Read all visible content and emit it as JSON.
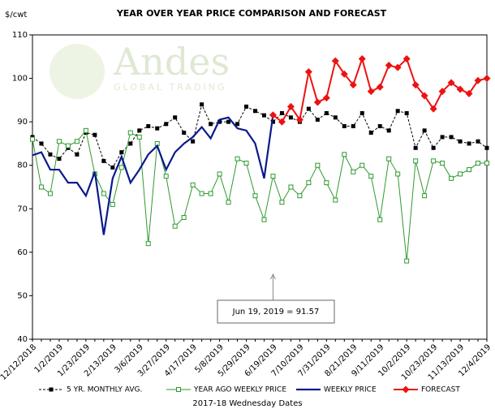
{
  "chart_data": {
    "type": "line",
    "title": "YEAR OVER YEAR PRICE COMPARISON AND FORECAST",
    "y_label": "$/cwt",
    "x_label": "2017-18 Wednesday Dates",
    "watermark": "Andes",
    "watermark_sub": "GLOBAL TRADING",
    "annotation": "Jun 19, 2019  = 91.57",
    "annotation_index": 27,
    "categories": [
      "12/12/2018",
      null,
      null,
      "1/2/2019",
      null,
      null,
      "1/23/2019",
      null,
      null,
      "2/13/2019",
      null,
      null,
      "3/6/2019",
      null,
      null,
      "3/27/2019",
      null,
      null,
      "4/17/2019",
      null,
      null,
      "5/8/2019",
      null,
      null,
      "5/29/2019",
      null,
      null,
      "6/19/2019",
      null,
      null,
      "7/10/2019",
      null,
      null,
      "7/31/2019",
      null,
      null,
      "8/21/2019",
      null,
      null,
      "9/11/2019",
      null,
      null,
      "10/2/2019",
      null,
      null,
      "10/23/2019",
      null,
      null,
      "11/13/2019",
      null,
      null,
      "12/4/2019"
    ],
    "ylim": [
      40,
      110
    ],
    "yticks": [
      40,
      50,
      60,
      70,
      80,
      90,
      100,
      110
    ],
    "series": [
      {
        "name": "5 YR. MONTHLY AVG.",
        "color": "#000000",
        "marker": "square",
        "dash": true,
        "values": [
          86.5,
          85,
          82.5,
          81.5,
          84,
          82.5,
          87.5,
          87,
          81,
          79.5,
          83,
          85,
          88,
          89,
          88.5,
          89.5,
          91,
          87.5,
          85.5,
          94,
          89.5,
          90,
          90,
          89.5,
          93.5,
          92.5,
          91.5,
          90,
          92,
          91,
          90,
          93,
          90.5,
          92,
          91,
          89,
          89,
          92,
          87.5,
          89,
          88,
          92.5,
          92,
          84,
          88,
          84,
          86.5,
          86.5,
          85.5,
          85,
          85.5,
          84
        ]
      },
      {
        "name": "YEAR AGO WEEKLY PRICE",
        "color": "#2e9a2e",
        "marker": "open-square",
        "dash": false,
        "values": [
          86,
          75,
          73.5,
          85.5,
          84.5,
          85.5,
          88,
          78,
          73.5,
          71,
          79.5,
          87.5,
          86.5,
          62,
          85,
          77.5,
          66,
          68,
          75.5,
          73.5,
          73.5,
          78,
          71.5,
          81.5,
          80.5,
          73,
          67.5,
          77.5,
          71.5,
          75,
          73,
          76,
          80,
          76,
          72,
          82.5,
          78.5,
          80,
          77.5,
          67.5,
          81.5,
          78,
          58,
          81,
          73,
          81,
          80.5,
          77,
          78,
          79,
          80.5,
          80.5
        ]
      },
      {
        "name": "WEEKLY PRICE",
        "color": "#0a1a8c",
        "marker": "none",
        "dash": false,
        "values": [
          82.3,
          83,
          79,
          79,
          76,
          76,
          73,
          78.5,
          64,
          77,
          82,
          76,
          79,
          82.5,
          84.5,
          79,
          83,
          85,
          86.5,
          88.8,
          86.2,
          90.5,
          91,
          88.5,
          88,
          85,
          77,
          91.57,
          null,
          null,
          null,
          null,
          null,
          null,
          null,
          null,
          null,
          null,
          null,
          null,
          null,
          null,
          null,
          null,
          null,
          null,
          null,
          null,
          null,
          null,
          null,
          null
        ]
      },
      {
        "name": "FORECAST",
        "color": "#ee1111",
        "marker": "diamond",
        "dash": false,
        "values": [
          null,
          null,
          null,
          null,
          null,
          null,
          null,
          null,
          null,
          null,
          null,
          null,
          null,
          null,
          null,
          null,
          null,
          null,
          null,
          null,
          null,
          null,
          null,
          null,
          null,
          null,
          null,
          91.57,
          90,
          93.5,
          90.5,
          101.5,
          94.5,
          95.5,
          104,
          101,
          98.5,
          104.5,
          97,
          98,
          103,
          102.5,
          104.5,
          98.5,
          96,
          93,
          97,
          99,
          97.5,
          96.5,
          99.5,
          100
        ]
      }
    ]
  }
}
